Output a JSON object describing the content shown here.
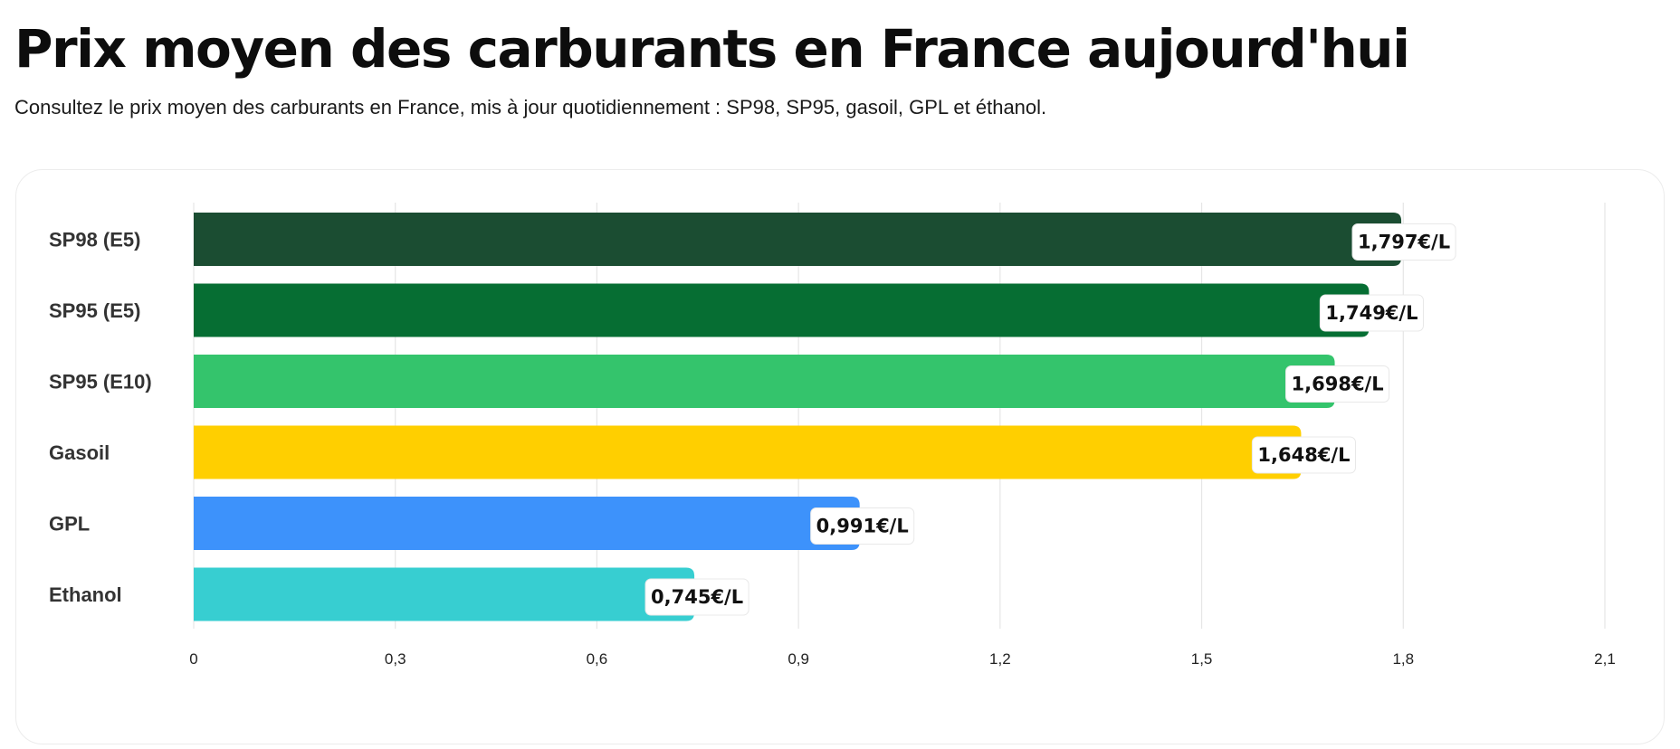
{
  "header": {
    "title": "Prix moyen des carburants en France aujourd'hui",
    "subtitle": "Consultez le prix moyen des carburants en France, mis à jour quotidiennement : SP98, SP95, gasoil, GPL et éthanol."
  },
  "chart_data": {
    "type": "bar",
    "orientation": "horizontal",
    "categories": [
      "SP98 (E5)",
      "SP95 (E5)",
      "SP95 (E10)",
      "Gasoil",
      "GPL",
      "Ethanol"
    ],
    "values": [
      1.797,
      1.749,
      1.698,
      1.648,
      0.991,
      0.745
    ],
    "value_labels": [
      "1,797€/L",
      "1,749€/L",
      "1,698€/L",
      "1,648€/L",
      "0,991€/L",
      "0,745€/L"
    ],
    "colors": [
      "#1b4d32",
      "#066e33",
      "#34c46c",
      "#ffcf00",
      "#3d92fb",
      "#37ced1"
    ],
    "xlim": [
      0,
      2.1
    ],
    "x_ticks": [
      0,
      0.3,
      0.6,
      0.9,
      1.2,
      1.5,
      1.8,
      2.1
    ],
    "x_tick_labels": [
      "0",
      "0,3",
      "0,6",
      "0,9",
      "1,2",
      "1,5",
      "1,8",
      "2,1"
    ],
    "grid": true,
    "legend": "none",
    "title": "",
    "xlabel": "",
    "ylabel": ""
  }
}
